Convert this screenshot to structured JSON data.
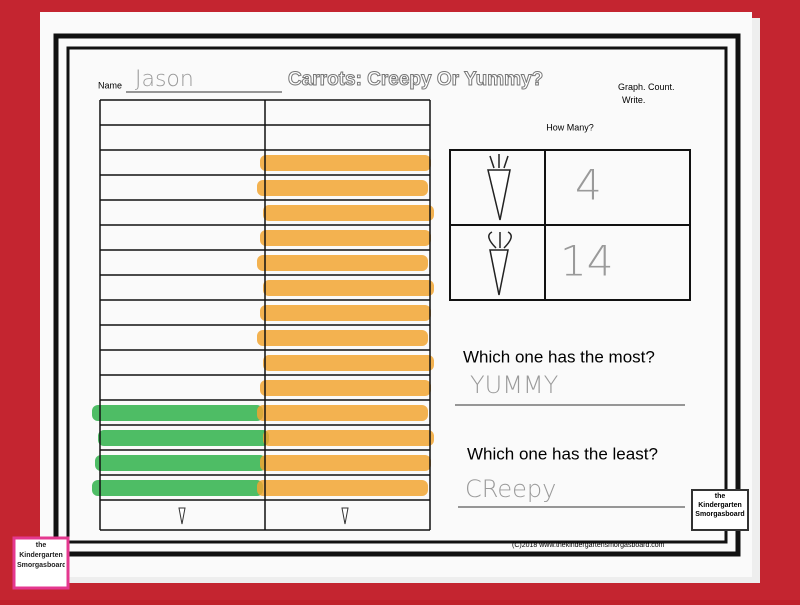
{
  "header": {
    "name_label": "Name",
    "name_written": "Jason",
    "title": "Carrots:  Creepy Or Yummy?",
    "instructions": "Graph.  Count.\nWrite."
  },
  "how_many": {
    "title": "How Many?",
    "creepy_count": 4,
    "yummy_count": 14
  },
  "questions": [
    {
      "question": "Which one has the most?",
      "answer": "YUMMY"
    },
    {
      "question": "Which one has the least?",
      "answer": "CReepy"
    }
  ],
  "footer": "(C)2018 www.thekindergartensmorgasboard.com",
  "logo": "the Kindergarten Smorgasboard"
}
